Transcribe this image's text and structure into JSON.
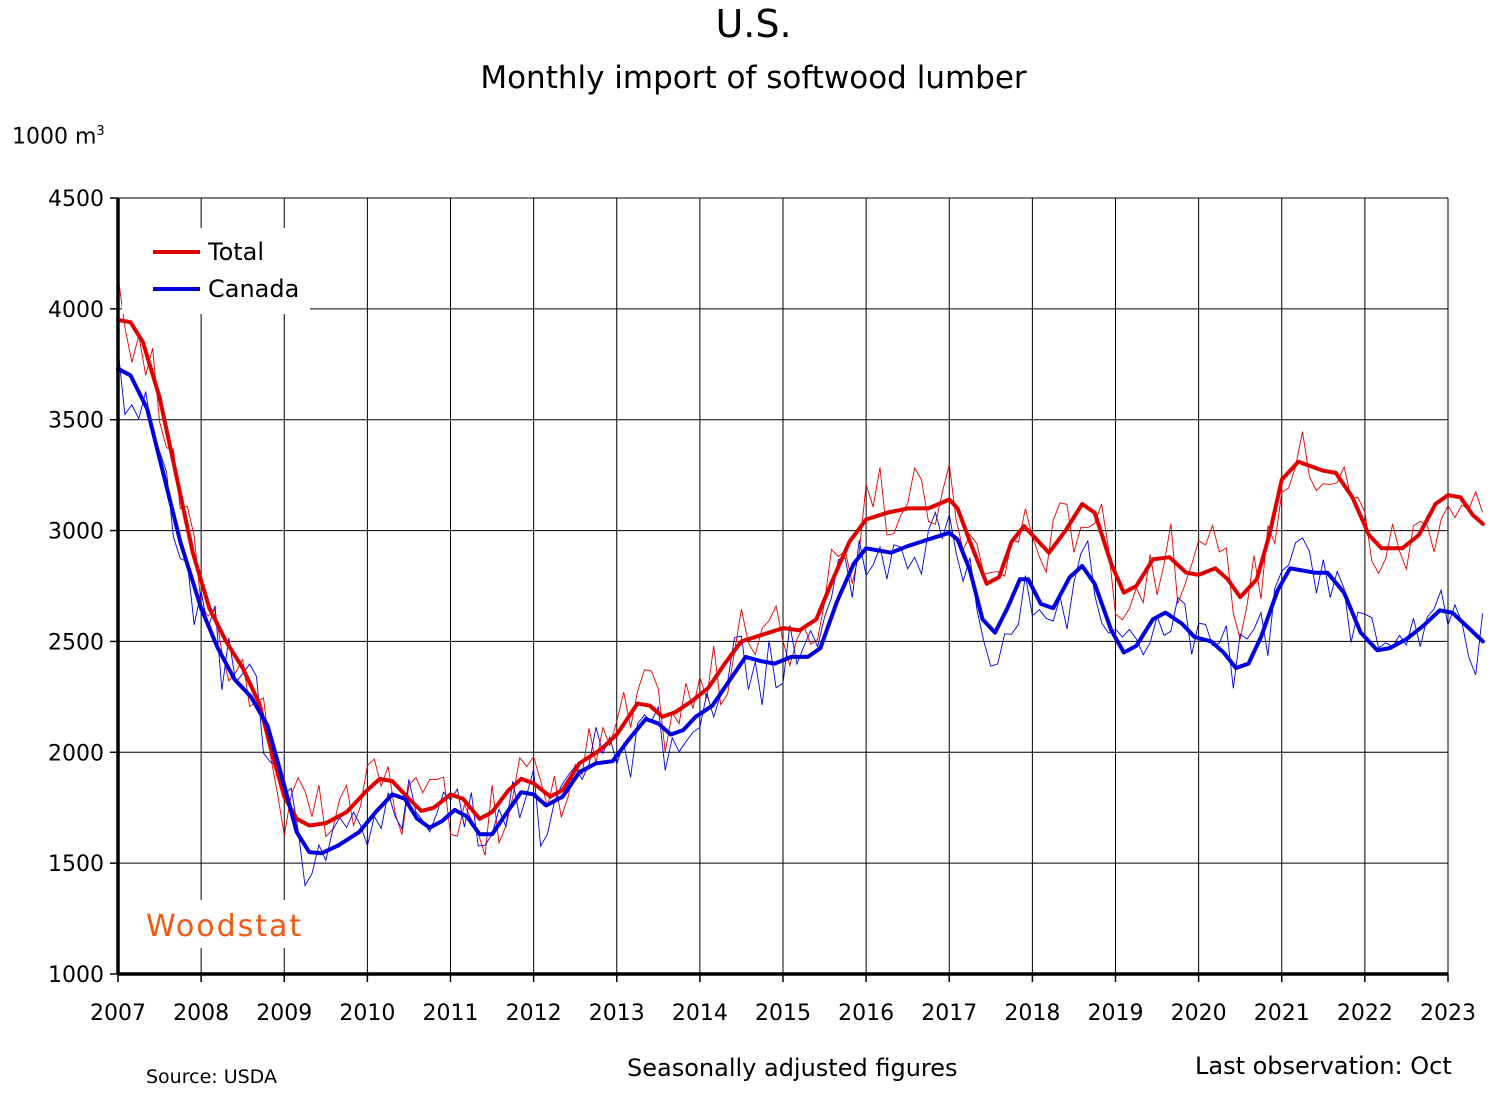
{
  "chart_data": {
    "type": "line",
    "title": "U.S.",
    "subtitle": "Monthly import of softwood lumber",
    "y_unit_label": "1000 m",
    "y_unit_sup": "3",
    "xlim": [
      2007,
      2023
    ],
    "ylim": [
      1000,
      4500
    ],
    "x_ticks": [
      "2007",
      "2008",
      "2009",
      "2010",
      "2011",
      "2012",
      "2013",
      "2014",
      "2015",
      "2016",
      "2017",
      "2018",
      "2019",
      "2020",
      "2021",
      "2022",
      "2023"
    ],
    "y_ticks": [
      "1000",
      "1500",
      "2000",
      "2500",
      "3000",
      "3500",
      "4000",
      "4500"
    ],
    "grid": true,
    "legend_position": "top-left",
    "colors": {
      "total": "#e00000",
      "canada": "#0000e0"
    },
    "series": [
      {
        "name": "Total",
        "kind": "trend",
        "points": [
          [
            2007.0,
            3950
          ],
          [
            2007.15,
            3940
          ],
          [
            2007.3,
            3850
          ],
          [
            2007.5,
            3600
          ],
          [
            2007.7,
            3250
          ],
          [
            2007.9,
            2900
          ],
          [
            2008.1,
            2650
          ],
          [
            2008.3,
            2500
          ],
          [
            2008.5,
            2380
          ],
          [
            2008.7,
            2220
          ],
          [
            2008.85,
            2000
          ],
          [
            2009.0,
            1800
          ],
          [
            2009.15,
            1700
          ],
          [
            2009.3,
            1670
          ],
          [
            2009.5,
            1680
          ],
          [
            2009.75,
            1730
          ],
          [
            2010.0,
            1830
          ],
          [
            2010.15,
            1880
          ],
          [
            2010.3,
            1870
          ],
          [
            2010.5,
            1790
          ],
          [
            2010.65,
            1735
          ],
          [
            2010.8,
            1750
          ],
          [
            2011.0,
            1810
          ],
          [
            2011.15,
            1790
          ],
          [
            2011.35,
            1700
          ],
          [
            2011.5,
            1730
          ],
          [
            2011.7,
            1830
          ],
          [
            2011.85,
            1880
          ],
          [
            2012.0,
            1860
          ],
          [
            2012.2,
            1800
          ],
          [
            2012.35,
            1830
          ],
          [
            2012.55,
            1950
          ],
          [
            2012.8,
            2010
          ],
          [
            2013.0,
            2080
          ],
          [
            2013.25,
            2220
          ],
          [
            2013.4,
            2210
          ],
          [
            2013.55,
            2160
          ],
          [
            2013.7,
            2180
          ],
          [
            2013.9,
            2230
          ],
          [
            2014.1,
            2290
          ],
          [
            2014.3,
            2400
          ],
          [
            2014.5,
            2500
          ],
          [
            2014.75,
            2530
          ],
          [
            2015.0,
            2560
          ],
          [
            2015.2,
            2550
          ],
          [
            2015.4,
            2600
          ],
          [
            2015.6,
            2780
          ],
          [
            2015.8,
            2950
          ],
          [
            2016.0,
            3050
          ],
          [
            2016.25,
            3080
          ],
          [
            2016.5,
            3100
          ],
          [
            2016.75,
            3100
          ],
          [
            2017.0,
            3140
          ],
          [
            2017.1,
            3100
          ],
          [
            2017.25,
            2950
          ],
          [
            2017.45,
            2760
          ],
          [
            2017.6,
            2790
          ],
          [
            2017.75,
            2950
          ],
          [
            2017.9,
            3020
          ],
          [
            2018.0,
            2980
          ],
          [
            2018.2,
            2900
          ],
          [
            2018.4,
            3000
          ],
          [
            2018.6,
            3120
          ],
          [
            2018.75,
            3080
          ],
          [
            2018.95,
            2850
          ],
          [
            2019.1,
            2720
          ],
          [
            2019.25,
            2750
          ],
          [
            2019.45,
            2870
          ],
          [
            2019.65,
            2880
          ],
          [
            2019.85,
            2810
          ],
          [
            2020.0,
            2800
          ],
          [
            2020.2,
            2830
          ],
          [
            2020.35,
            2780
          ],
          [
            2020.5,
            2700
          ],
          [
            2020.7,
            2780
          ],
          [
            2020.85,
            2980
          ],
          [
            2021.0,
            3230
          ],
          [
            2021.2,
            3310
          ],
          [
            2021.35,
            3290
          ],
          [
            2021.5,
            3270
          ],
          [
            2021.65,
            3260
          ],
          [
            2021.85,
            3150
          ],
          [
            2022.05,
            2980
          ],
          [
            2022.2,
            2920
          ],
          [
            2022.45,
            2920
          ],
          [
            2022.65,
            2980
          ],
          [
            2022.85,
            3120
          ],
          [
            2023.0,
            3160
          ],
          [
            2023.15,
            3150
          ],
          [
            2023.3,
            3070
          ],
          [
            2023.42,
            3030
          ]
        ]
      },
      {
        "name": "Canada",
        "kind": "trend",
        "points": [
          [
            2007.0,
            3730
          ],
          [
            2007.15,
            3700
          ],
          [
            2007.35,
            3550
          ],
          [
            2007.55,
            3250
          ],
          [
            2007.75,
            2950
          ],
          [
            2008.0,
            2650
          ],
          [
            2008.2,
            2470
          ],
          [
            2008.4,
            2330
          ],
          [
            2008.6,
            2250
          ],
          [
            2008.8,
            2120
          ],
          [
            2009.0,
            1850
          ],
          [
            2009.15,
            1640
          ],
          [
            2009.3,
            1550
          ],
          [
            2009.45,
            1545
          ],
          [
            2009.65,
            1580
          ],
          [
            2009.9,
            1640
          ],
          [
            2010.1,
            1730
          ],
          [
            2010.3,
            1810
          ],
          [
            2010.45,
            1790
          ],
          [
            2010.6,
            1700
          ],
          [
            2010.75,
            1660
          ],
          [
            2010.9,
            1690
          ],
          [
            2011.05,
            1740
          ],
          [
            2011.2,
            1710
          ],
          [
            2011.35,
            1630
          ],
          [
            2011.5,
            1630
          ],
          [
            2011.7,
            1740
          ],
          [
            2011.85,
            1820
          ],
          [
            2012.0,
            1810
          ],
          [
            2012.15,
            1760
          ],
          [
            2012.35,
            1800
          ],
          [
            2012.55,
            1910
          ],
          [
            2012.75,
            1950
          ],
          [
            2012.95,
            1960
          ],
          [
            2013.15,
            2060
          ],
          [
            2013.35,
            2150
          ],
          [
            2013.5,
            2130
          ],
          [
            2013.65,
            2080
          ],
          [
            2013.8,
            2100
          ],
          [
            2013.95,
            2160
          ],
          [
            2014.15,
            2210
          ],
          [
            2014.35,
            2320
          ],
          [
            2014.55,
            2430
          ],
          [
            2014.75,
            2410
          ],
          [
            2014.9,
            2400
          ],
          [
            2015.1,
            2430
          ],
          [
            2015.3,
            2430
          ],
          [
            2015.45,
            2470
          ],
          [
            2015.65,
            2680
          ],
          [
            2015.85,
            2850
          ],
          [
            2016.0,
            2920
          ],
          [
            2016.15,
            2910
          ],
          [
            2016.3,
            2900
          ],
          [
            2016.5,
            2930
          ],
          [
            2016.75,
            2960
          ],
          [
            2017.0,
            2990
          ],
          [
            2017.1,
            2960
          ],
          [
            2017.25,
            2820
          ],
          [
            2017.4,
            2600
          ],
          [
            2017.55,
            2540
          ],
          [
            2017.7,
            2650
          ],
          [
            2017.85,
            2780
          ],
          [
            2017.95,
            2780
          ],
          [
            2018.1,
            2670
          ],
          [
            2018.25,
            2650
          ],
          [
            2018.45,
            2790
          ],
          [
            2018.6,
            2840
          ],
          [
            2018.75,
            2760
          ],
          [
            2018.95,
            2550
          ],
          [
            2019.1,
            2450
          ],
          [
            2019.25,
            2480
          ],
          [
            2019.45,
            2600
          ],
          [
            2019.6,
            2630
          ],
          [
            2019.8,
            2580
          ],
          [
            2019.95,
            2520
          ],
          [
            2020.15,
            2500
          ],
          [
            2020.3,
            2450
          ],
          [
            2020.45,
            2380
          ],
          [
            2020.6,
            2400
          ],
          [
            2020.75,
            2520
          ],
          [
            2020.95,
            2730
          ],
          [
            2021.1,
            2830
          ],
          [
            2021.25,
            2820
          ],
          [
            2021.4,
            2810
          ],
          [
            2021.55,
            2810
          ],
          [
            2021.75,
            2720
          ],
          [
            2021.95,
            2540
          ],
          [
            2022.15,
            2460
          ],
          [
            2022.3,
            2470
          ],
          [
            2022.5,
            2510
          ],
          [
            2022.7,
            2570
          ],
          [
            2022.9,
            2640
          ],
          [
            2023.05,
            2630
          ],
          [
            2023.25,
            2560
          ],
          [
            2023.42,
            2500
          ]
        ]
      }
    ]
  },
  "branding": {
    "logo_text": "Woodstat",
    "logo_color": "#f05a14"
  },
  "footer": {
    "source": "Source: USDA",
    "note": "Seasonally adjusted figures",
    "last_observation": "Last observation: Oct"
  }
}
